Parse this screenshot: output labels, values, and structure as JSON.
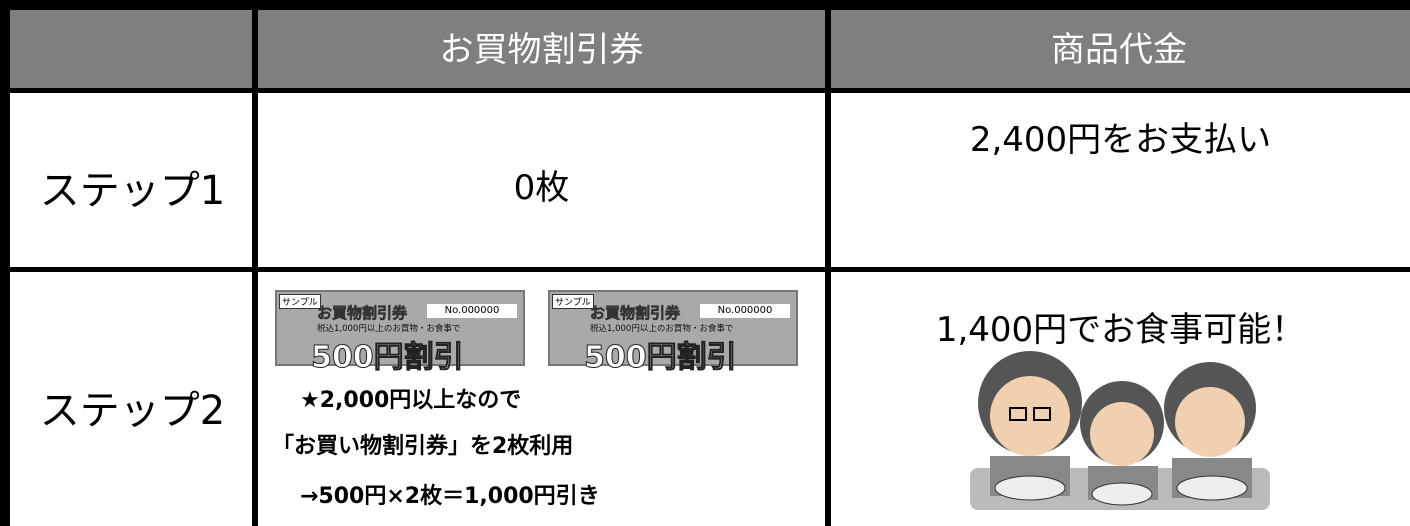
{
  "table": {
    "header": {
      "columns": [
        "お買物割引券",
        "商品代金"
      ]
    },
    "rows": [
      {
        "step": "ステップ1",
        "coupons": "0枚",
        "payment": "2,400円をお支払い"
      },
      {
        "step": "ステップ2",
        "coupon": {
          "sample": "サンプル",
          "title": "お買物割引券",
          "number": "No.000000",
          "condition": "税込1,000円以上のお買物・お食事で",
          "discount": "500円割引"
        },
        "notes": [
          "★2,000円以上なので",
          "「お買い物割引券」を2枚利用",
          "→500円×2枚＝1,000円引き"
        ],
        "payment": "1,400円でお食事可能！"
      }
    ]
  }
}
